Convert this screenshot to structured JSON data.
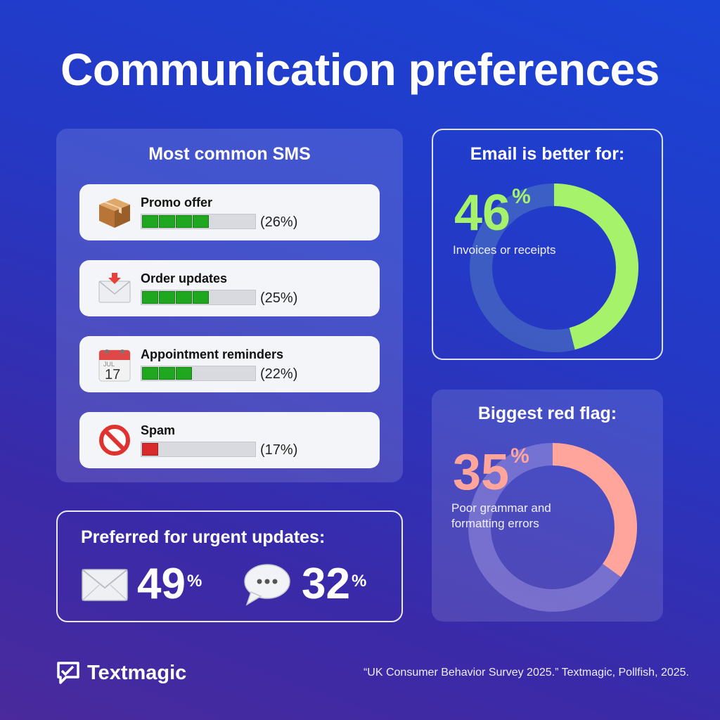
{
  "title": "Communication preferences",
  "sms": {
    "heading": "Most common SMS",
    "items": [
      {
        "label": "Promo offer",
        "pct_text": "(26%)",
        "value": 26,
        "filled_segments": 4,
        "bar_color": "#1fa81f",
        "icon": "package-icon"
      },
      {
        "label": "Order updates",
        "pct_text": "(25%)",
        "value": 25,
        "filled_segments": 4,
        "bar_color": "#1fa81f",
        "icon": "envelope-arrow-icon"
      },
      {
        "label": "Appointment reminders",
        "pct_text": "(22%)",
        "value": 22,
        "filled_segments": 3,
        "bar_color": "#1fa81f",
        "icon": "calendar-icon"
      },
      {
        "label": "Spam",
        "pct_text": "(17%)",
        "value": 17,
        "filled_segments": 1,
        "bar_color": "#d92b2b",
        "icon": "prohibited-icon"
      }
    ],
    "calendar": {
      "month": "JUL",
      "day": "17"
    }
  },
  "email": {
    "heading": "Email is better for:",
    "number": "46",
    "unit": "%",
    "caption": "Invoices or receipts",
    "accent": "#a6f26a"
  },
  "red_flag": {
    "heading": "Biggest red flag:",
    "number": "35",
    "unit": "%",
    "caption_line1": "Poor grammar and",
    "caption_line2": "formatting errors",
    "accent": "#ffa59c"
  },
  "urgent": {
    "heading": "Preferred for urgent updates:",
    "email_number": "49",
    "sms_number": "32",
    "unit": "%",
    "email_icon": "envelope-icon",
    "sms_icon": "speech-bubble-icon",
    "bubble_dots": "···"
  },
  "footer": {
    "brand": "Textmagic",
    "citation": "“UK Consumer Behavior Survey 2025.” Textmagic, Pollfish, 2025."
  },
  "chart_data": [
    {
      "type": "bar",
      "title": "Most common SMS",
      "categories": [
        "Promo offer",
        "Order updates",
        "Appointment reminders",
        "Spam"
      ],
      "values": [
        26,
        25,
        22,
        17
      ],
      "ylim": [
        0,
        100
      ]
    },
    {
      "type": "pie",
      "title": "Email is better for:",
      "categories": [
        "Invoices or receipts",
        ""
      ],
      "values": [
        46,
        54
      ]
    },
    {
      "type": "pie",
      "title": "Biggest red flag:",
      "categories": [
        "Poor grammar and formatting errors",
        ""
      ],
      "values": [
        35,
        65
      ]
    },
    {
      "type": "bar",
      "title": "Preferred for urgent updates:",
      "categories": [
        "envelope-icon",
        "speech-bubble-icon"
      ],
      "values": [
        49,
        32
      ]
    }
  ]
}
